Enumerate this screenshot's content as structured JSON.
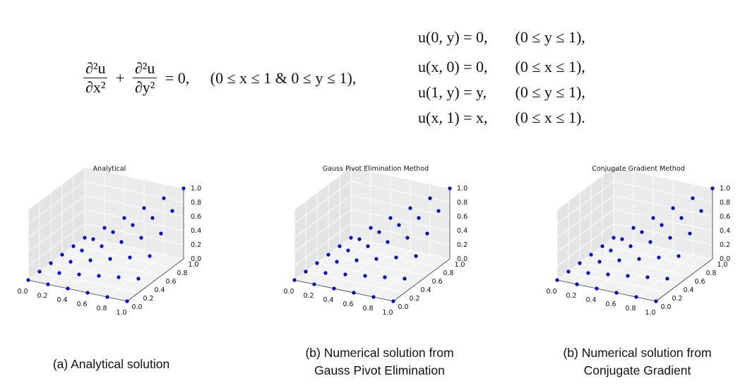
{
  "equations": {
    "pde": {
      "term1_num": "∂²u",
      "term1_den": "∂x²",
      "plus": "+",
      "term2_num": "∂²u",
      "term2_den": "∂y²",
      "rhs": "= 0,",
      "domain": "(0 ≤ x ≤ 1 & 0 ≤ y ≤ 1),"
    },
    "boundary_conditions": [
      {
        "lhs": "u(0, y) = 0,",
        "domain": "(0 ≤ y ≤ 1),"
      },
      {
        "lhs": "u(x, 0) = 0,",
        "domain": "(0 ≤ x ≤ 1),"
      },
      {
        "lhs": "u(1, y) = y,",
        "domain": "(0 ≤ y ≤ 1),"
      },
      {
        "lhs": "u(x, 1) = x,",
        "domain": "(0 ≤ x ≤ 1)."
      }
    ]
  },
  "marker_color": "#0000cc",
  "chart_data": [
    {
      "type": "scatter",
      "projection": "3d",
      "title": "Analytical",
      "x_ticks": [
        "0.0",
        "0.2",
        "0.4",
        "0.6",
        "0.8",
        "1.0"
      ],
      "y_ticks": [
        "0.0",
        "0.2",
        "0.4",
        "0.6",
        "0.8",
        "1.0"
      ],
      "z_ticks": [
        "0.0",
        "0.2",
        "0.4",
        "0.6",
        "0.8",
        "1.0"
      ],
      "xlim": [
        0,
        1
      ],
      "ylim": [
        0,
        1
      ],
      "zlim": [
        0,
        1
      ],
      "grid": true,
      "x": [
        0,
        0.2,
        0.4,
        0.6,
        0.8,
        1.0
      ],
      "y": [
        0,
        0.2,
        0.4,
        0.6,
        0.8,
        1.0
      ],
      "z": [
        [
          0,
          0,
          0,
          0,
          0,
          0
        ],
        [
          0,
          0.04,
          0.08,
          0.12,
          0.16,
          0.2
        ],
        [
          0,
          0.08,
          0.16,
          0.24,
          0.32,
          0.4
        ],
        [
          0,
          0.12,
          0.24,
          0.36,
          0.48,
          0.6
        ],
        [
          0,
          0.16,
          0.32,
          0.48,
          0.64,
          0.8
        ],
        [
          0,
          0.2,
          0.4,
          0.6,
          0.8,
          1.0
        ]
      ]
    },
    {
      "type": "scatter",
      "projection": "3d",
      "title": "Gauss Pivot Elimination Method",
      "x_ticks": [
        "0.0",
        "0.2",
        "0.4",
        "0.6",
        "0.8",
        "1.0"
      ],
      "y_ticks": [
        "0.0",
        "0.2",
        "0.4",
        "0.6",
        "0.8",
        "1.0"
      ],
      "z_ticks": [
        "0.0",
        "0.2",
        "0.4",
        "0.6",
        "0.8",
        "1.0"
      ],
      "xlim": [
        0,
        1
      ],
      "ylim": [
        0,
        1
      ],
      "zlim": [
        0,
        1
      ],
      "grid": true,
      "x": [
        0,
        0.2,
        0.4,
        0.6,
        0.8,
        1.0
      ],
      "y": [
        0,
        0.2,
        0.4,
        0.6,
        0.8,
        1.0
      ],
      "z": [
        [
          0,
          0,
          0,
          0,
          0,
          0
        ],
        [
          0,
          0.04,
          0.08,
          0.12,
          0.16,
          0.2
        ],
        [
          0,
          0.08,
          0.16,
          0.24,
          0.32,
          0.4
        ],
        [
          0,
          0.12,
          0.24,
          0.36,
          0.48,
          0.6
        ],
        [
          0,
          0.16,
          0.32,
          0.48,
          0.64,
          0.8
        ],
        [
          0,
          0.2,
          0.4,
          0.6,
          0.8,
          1.0
        ]
      ]
    },
    {
      "type": "scatter",
      "projection": "3d",
      "title": "Conjugate Gradient Method",
      "x_ticks": [
        "0.0",
        "0.2",
        "0.4",
        "0.6",
        "0.8",
        "1.0"
      ],
      "y_ticks": [
        "0.0",
        "0.2",
        "0.4",
        "0.6",
        "0.8",
        "1.0"
      ],
      "z_ticks": [
        "0.0",
        "0.2",
        "0.4",
        "0.6",
        "0.8",
        "1.0"
      ],
      "xlim": [
        0,
        1
      ],
      "ylim": [
        0,
        1
      ],
      "zlim": [
        0,
        1
      ],
      "grid": true,
      "x": [
        0,
        0.2,
        0.4,
        0.6,
        0.8,
        1.0
      ],
      "y": [
        0,
        0.2,
        0.4,
        0.6,
        0.8,
        1.0
      ],
      "z": [
        [
          0,
          0,
          0,
          0,
          0,
          0
        ],
        [
          0,
          0.04,
          0.08,
          0.12,
          0.16,
          0.2
        ],
        [
          0,
          0.08,
          0.16,
          0.24,
          0.32,
          0.4
        ],
        [
          0,
          0.12,
          0.24,
          0.36,
          0.48,
          0.6
        ],
        [
          0,
          0.16,
          0.32,
          0.48,
          0.64,
          0.8
        ],
        [
          0,
          0.2,
          0.4,
          0.6,
          0.8,
          1.0
        ]
      ]
    }
  ],
  "captions": [
    {
      "lines": [
        "(a) Analytical solution"
      ]
    },
    {
      "lines": [
        "(b) Numerical solution from",
        "Gauss Pivot Elimination"
      ]
    },
    {
      "lines": [
        "(b) Numerical solution from",
        "Conjugate Gradient"
      ]
    }
  ]
}
